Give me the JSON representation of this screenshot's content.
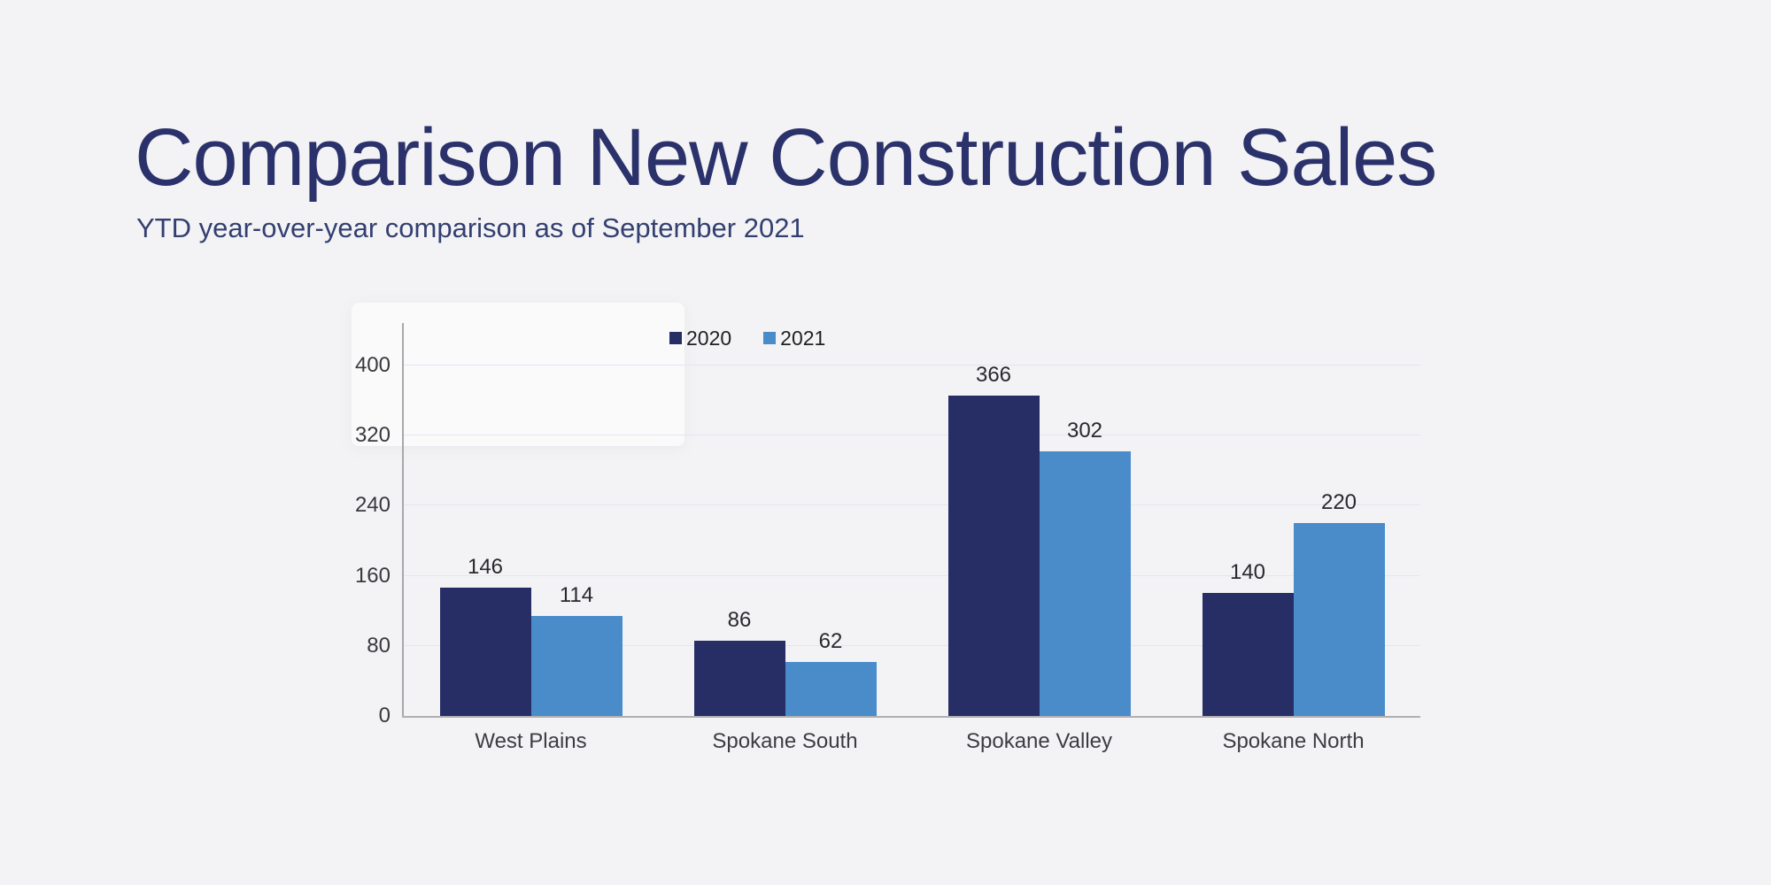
{
  "page": {
    "background": "#f3f3f5"
  },
  "header": {
    "title": "Comparison New Construction Sales",
    "subtitle": "YTD year-over-year comparison as of September 2021"
  },
  "chart_data": {
    "type": "bar",
    "title": "",
    "xlabel": "",
    "ylabel": "",
    "categories": [
      "West Plains",
      "Spokane South",
      "Spokane Valley",
      "Spokane North"
    ],
    "series": [
      {
        "name": "2020",
        "color": "#272e66",
        "values": [
          146,
          86,
          366,
          140
        ]
      },
      {
        "name": "2021",
        "color": "#4a8cca",
        "values": [
          114,
          62,
          302,
          220
        ]
      }
    ],
    "y_ticks": [
      0,
      80,
      160,
      240,
      320,
      400
    ],
    "ylim": [
      0,
      449
    ],
    "grid": true,
    "legend_position": "top"
  }
}
